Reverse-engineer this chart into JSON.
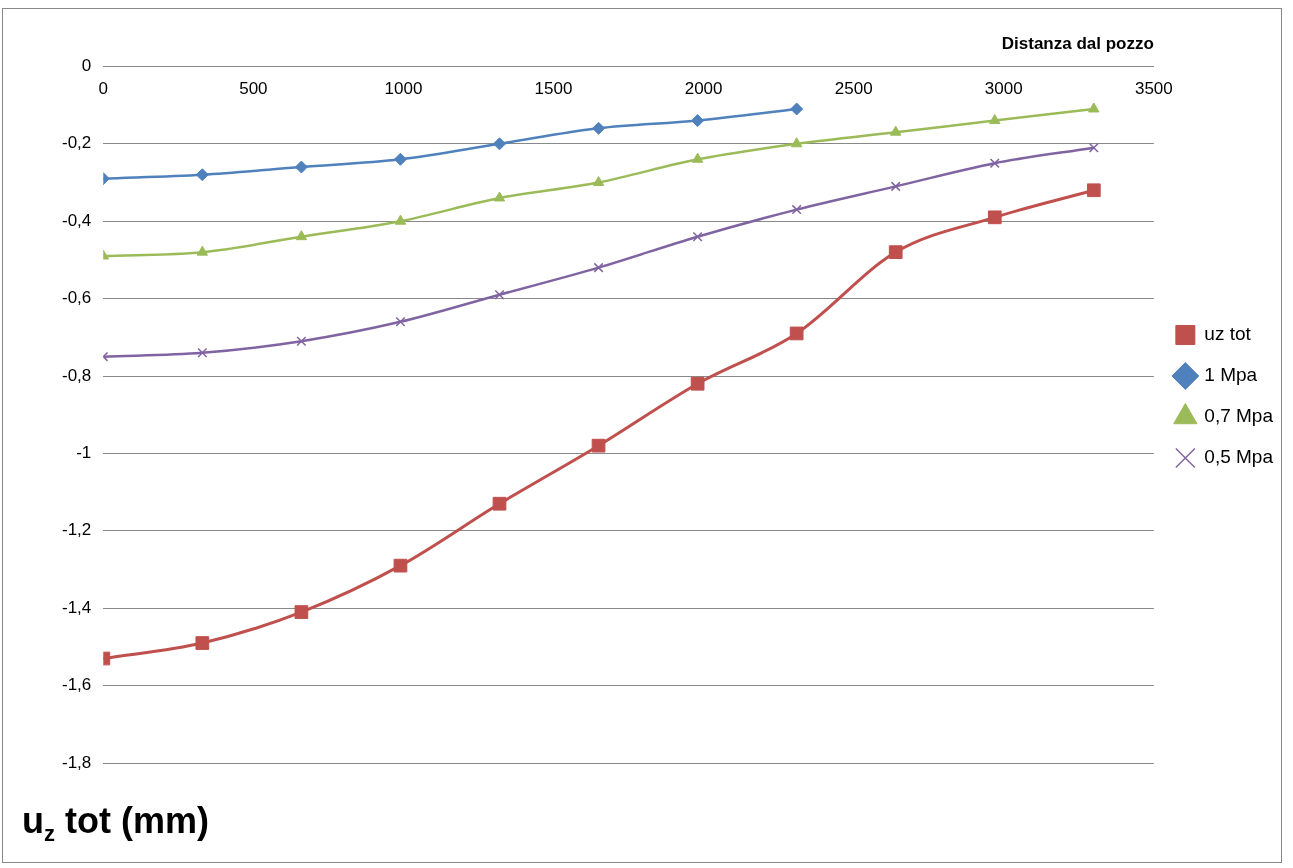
{
  "chart_data": {
    "type": "line",
    "xlabel": "Distanza dal pozzo",
    "ylabel": "u$_{z}$ tot (mm)",
    "x": [
      0,
      330,
      660,
      990,
      1320,
      1650,
      1980,
      2310,
      2640,
      2970,
      3300
    ],
    "xlim": [
      0,
      3500
    ],
    "xticks": [
      0,
      500,
      1000,
      1500,
      2000,
      2500,
      3000,
      3500
    ],
    "ylim": [
      -1.8,
      0
    ],
    "yticks": [
      {
        "value": 0,
        "label": "0"
      },
      {
        "value": -0.2,
        "label": "-0,2"
      },
      {
        "value": -0.4,
        "label": "-0,4"
      },
      {
        "value": -0.6,
        "label": "-0,6"
      },
      {
        "value": -0.8,
        "label": "-0,8"
      },
      {
        "value": -1,
        "label": "-1"
      },
      {
        "value": -1.2,
        "label": "-1,2"
      },
      {
        "value": -1.4,
        "label": "-1,4"
      },
      {
        "value": -1.6,
        "label": "-1,6"
      },
      {
        "value": -1.8,
        "label": "-1,8"
      }
    ],
    "grid": "y",
    "legend": "right",
    "series": [
      {
        "name": "uz tot",
        "color": "#c0504d",
        "marker": "square",
        "values": [
          -1.53,
          -1.49,
          -1.41,
          -1.29,
          -1.13,
          -0.98,
          -0.82,
          -0.69,
          -0.48,
          -0.39,
          -0.32
        ]
      },
      {
        "name": "1 Mpa",
        "color": "#4f81bd",
        "marker": "diamond",
        "values": [
          -0.29,
          -0.28,
          -0.26,
          -0.24,
          -0.2,
          -0.16,
          -0.14,
          -0.11,
          null,
          null,
          null
        ]
      },
      {
        "name": "0,7 Mpa",
        "color": "#9bbb59",
        "marker": "triangle",
        "values": [
          -0.49,
          -0.48,
          -0.44,
          -0.4,
          -0.34,
          -0.3,
          -0.24,
          -0.2,
          -0.17,
          -0.14,
          -0.11
        ]
      },
      {
        "name": "0,5 Mpa",
        "color": "#8064a2",
        "marker": "cross",
        "values": [
          -0.75,
          -0.74,
          -0.71,
          -0.66,
          -0.59,
          -0.52,
          -0.44,
          -0.37,
          -0.31,
          -0.25,
          -0.21
        ]
      }
    ]
  }
}
